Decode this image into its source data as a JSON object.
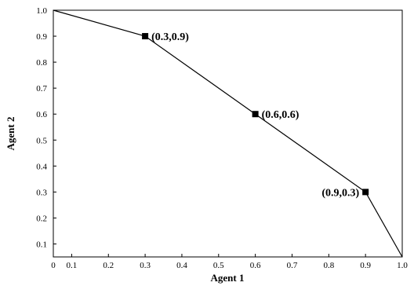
{
  "chart_data": {
    "type": "line",
    "xlabel": "Agent 1",
    "ylabel": "Agent 2",
    "xlim": [
      0.05,
      1.0
    ],
    "ylim": [
      0.05,
      1.0
    ],
    "x_ticks": [
      {
        "value": 0.05,
        "label": "0"
      },
      {
        "value": 0.1,
        "label": "0.1"
      },
      {
        "value": 0.2,
        "label": "0.2"
      },
      {
        "value": 0.3,
        "label": "0.3"
      },
      {
        "value": 0.4,
        "label": "0.4"
      },
      {
        "value": 0.5,
        "label": "0.5"
      },
      {
        "value": 0.6,
        "label": "0.6"
      },
      {
        "value": 0.7,
        "label": "0.7"
      },
      {
        "value": 0.8,
        "label": "0.8"
      },
      {
        "value": 0.9,
        "label": "0.9"
      },
      {
        "value": 1.0,
        "label": "1.0"
      }
    ],
    "y_ticks": [
      {
        "value": 0.1,
        "label": "0.1"
      },
      {
        "value": 0.2,
        "label": "0.2"
      },
      {
        "value": 0.3,
        "label": "0.3"
      },
      {
        "value": 0.4,
        "label": "0.4"
      },
      {
        "value": 0.5,
        "label": "0.5"
      },
      {
        "value": 0.6,
        "label": "0.6"
      },
      {
        "value": 0.7,
        "label": "0.7"
      },
      {
        "value": 0.8,
        "label": "0.8"
      },
      {
        "value": 0.9,
        "label": "0.9"
      },
      {
        "value": 1.0,
        "label": "1.0"
      }
    ],
    "grid": false,
    "series": [
      {
        "x": [
          0.05,
          0.3,
          0.6,
          0.9,
          1.0
        ],
        "y": [
          1.0,
          0.9,
          0.6,
          0.3,
          0.05
        ],
        "color": "#000000"
      }
    ],
    "marked_points": [
      {
        "x": 0.3,
        "y": 0.9,
        "label": "(0.3,0.9)",
        "label_side": "right"
      },
      {
        "x": 0.6,
        "y": 0.6,
        "label": "(0.6,0.6)",
        "label_side": "right"
      },
      {
        "x": 0.9,
        "y": 0.3,
        "label": "(0.9,0.3)",
        "label_side": "left"
      }
    ]
  }
}
